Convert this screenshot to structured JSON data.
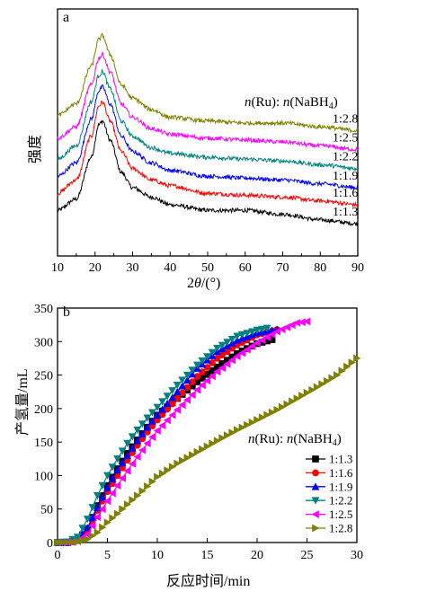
{
  "chart_data": [
    {
      "panel": "a",
      "type": "line",
      "xlabel": "2θ/(°)",
      "ylabel": "强度",
      "xlim": [
        10,
        90
      ],
      "xticks": [
        10,
        20,
        30,
        40,
        50,
        60,
        70,
        80,
        90
      ],
      "legend_title": "n(Ru): n(NaBH₄)",
      "series": [
        {
          "name": "1:1.3",
          "color": "#000000",
          "values": [
            [
              10,
              0.24
            ],
            [
              15,
              0.3
            ],
            [
              19,
              0.52
            ],
            [
              21,
              0.69
            ],
            [
              22,
              0.71
            ],
            [
              24,
              0.61
            ],
            [
              27,
              0.44
            ],
            [
              30,
              0.36
            ],
            [
              35,
              0.31
            ],
            [
              40,
              0.27
            ],
            [
              50,
              0.24
            ],
            [
              60,
              0.24
            ],
            [
              70,
              0.22
            ],
            [
              80,
              0.19
            ],
            [
              90,
              0.17
            ]
          ]
        },
        {
          "name": "1:1.6",
          "color": "#ff0000",
          "values": [
            [
              10,
              0.33
            ],
            [
              15,
              0.4
            ],
            [
              19,
              0.63
            ],
            [
              21,
              0.79
            ],
            [
              22,
              0.81
            ],
            [
              24,
              0.71
            ],
            [
              27,
              0.55
            ],
            [
              30,
              0.46
            ],
            [
              35,
              0.4
            ],
            [
              40,
              0.37
            ],
            [
              50,
              0.33
            ],
            [
              60,
              0.32
            ],
            [
              70,
              0.31
            ],
            [
              80,
              0.29
            ],
            [
              90,
              0.27
            ]
          ]
        },
        {
          "name": "1:1.9",
          "color": "#0000ff",
          "values": [
            [
              10,
              0.42
            ],
            [
              15,
              0.49
            ],
            [
              19,
              0.72
            ],
            [
              21,
              0.87
            ],
            [
              22,
              0.89
            ],
            [
              24,
              0.8
            ],
            [
              27,
              0.63
            ],
            [
              30,
              0.55
            ],
            [
              35,
              0.49
            ],
            [
              40,
              0.45
            ],
            [
              50,
              0.42
            ],
            [
              60,
              0.41
            ],
            [
              70,
              0.4
            ],
            [
              80,
              0.38
            ],
            [
              90,
              0.36
            ]
          ]
        },
        {
          "name": "1:2.2",
          "color": "#008080",
          "values": [
            [
              10,
              0.51
            ],
            [
              15,
              0.58
            ],
            [
              19,
              0.81
            ],
            [
              21,
              0.95
            ],
            [
              22,
              0.97
            ],
            [
              24,
              0.88
            ],
            [
              27,
              0.71
            ],
            [
              30,
              0.63
            ],
            [
              35,
              0.57
            ],
            [
              40,
              0.54
            ],
            [
              50,
              0.52
            ],
            [
              60,
              0.51
            ],
            [
              70,
              0.5
            ],
            [
              80,
              0.48
            ],
            [
              90,
              0.46
            ]
          ]
        },
        {
          "name": "1:2.5",
          "color": "#ff00ff",
          "values": [
            [
              10,
              0.62
            ],
            [
              15,
              0.68
            ],
            [
              19,
              0.9
            ],
            [
              21,
              1.04
            ],
            [
              22,
              1.06
            ],
            [
              24,
              0.97
            ],
            [
              27,
              0.8
            ],
            [
              30,
              0.73
            ],
            [
              35,
              0.67
            ],
            [
              40,
              0.64
            ],
            [
              50,
              0.62
            ],
            [
              60,
              0.61
            ],
            [
              70,
              0.6
            ],
            [
              80,
              0.58
            ],
            [
              90,
              0.56
            ]
          ]
        },
        {
          "name": "1:2.8",
          "color": "#808000",
          "values": [
            [
              10,
              0.74
            ],
            [
              15,
              0.8
            ],
            [
              19,
              1.0
            ],
            [
              21,
              1.14
            ],
            [
              22,
              1.16
            ],
            [
              24,
              1.06
            ],
            [
              27,
              0.9
            ],
            [
              30,
              0.83
            ],
            [
              35,
              0.77
            ],
            [
              40,
              0.73
            ],
            [
              50,
              0.71
            ],
            [
              60,
              0.7
            ],
            [
              70,
              0.7
            ],
            [
              80,
              0.68
            ],
            [
              90,
              0.66
            ]
          ]
        }
      ]
    },
    {
      "panel": "b",
      "type": "line",
      "xlabel": "反应时间/min",
      "ylabel": "产氢量/mL",
      "xlim": [
        0,
        30
      ],
      "ylim": [
        0,
        350
      ],
      "xticks": [
        0,
        5,
        10,
        15,
        20,
        25,
        30
      ],
      "yticks": [
        0,
        50,
        100,
        150,
        200,
        250,
        300,
        350
      ],
      "legend_title": "n(Ru): n(NaBH₄)",
      "series": [
        {
          "name": "1:1.3",
          "color": "#000000",
          "marker": "square",
          "values": [
            [
              0,
              0
            ],
            [
              1,
              0
            ],
            [
              2,
              3
            ],
            [
              3,
              20
            ],
            [
              4,
              55
            ],
            [
              5,
              85
            ],
            [
              6,
              110
            ],
            [
              7,
              133
            ],
            [
              8,
              153
            ],
            [
              9,
              172
            ],
            [
              10,
              190
            ],
            [
              12,
              215
            ],
            [
              14,
              240
            ],
            [
              16,
              262
            ],
            [
              18,
              282
            ],
            [
              20,
              297
            ],
            [
              21.5,
              303
            ]
          ]
        },
        {
          "name": "1:1.6",
          "color": "#ff0000",
          "marker": "circle",
          "values": [
            [
              0,
              0
            ],
            [
              1,
              0
            ],
            [
              2,
              3
            ],
            [
              3,
              18
            ],
            [
              4,
              48
            ],
            [
              5,
              76
            ],
            [
              6,
              100
            ],
            [
              7,
              123
            ],
            [
              8,
              145
            ],
            [
              9,
              165
            ],
            [
              10,
              183
            ],
            [
              12,
              215
            ],
            [
              14,
              248
            ],
            [
              16,
              275
            ],
            [
              18,
              295
            ],
            [
              20,
              310
            ],
            [
              22,
              318
            ]
          ]
        },
        {
          "name": "1:1.9",
          "color": "#0000ff",
          "marker": "triangle-up",
          "values": [
            [
              0,
              0
            ],
            [
              1,
              0
            ],
            [
              2,
              4
            ],
            [
              3,
              22
            ],
            [
              4,
              52
            ],
            [
              5,
              82
            ],
            [
              6,
              108
            ],
            [
              7,
              130
            ],
            [
              8,
              152
            ],
            [
              9,
              172
            ],
            [
              10,
              190
            ],
            [
              12,
              225
            ],
            [
              14,
              260
            ],
            [
              16,
              285
            ],
            [
              18,
              302
            ],
            [
              20,
              313
            ],
            [
              22,
              318
            ]
          ]
        },
        {
          "name": "1:2.2",
          "color": "#008080",
          "marker": "triangle-down",
          "values": [
            [
              0,
              0
            ],
            [
              1,
              1
            ],
            [
              2,
              8
            ],
            [
              3,
              35
            ],
            [
              4,
              70
            ],
            [
              5,
              100
            ],
            [
              6,
              125
            ],
            [
              7,
              148
            ],
            [
              8,
              168
            ],
            [
              9,
              186
            ],
            [
              10,
              202
            ],
            [
              12,
              235
            ],
            [
              14,
              265
            ],
            [
              16,
              290
            ],
            [
              18,
              308
            ],
            [
              20,
              317
            ],
            [
              21,
              320
            ]
          ]
        },
        {
          "name": "1:2.5",
          "color": "#ff00ff",
          "marker": "triangle-left",
          "values": [
            [
              0,
              0
            ],
            [
              1,
              0
            ],
            [
              2,
              2
            ],
            [
              3,
              12
            ],
            [
              4,
              38
            ],
            [
              5,
              62
            ],
            [
              6,
              85
            ],
            [
              7,
              107
            ],
            [
              8,
              128
            ],
            [
              9,
              148
            ],
            [
              10,
              167
            ],
            [
              12,
              198
            ],
            [
              14,
              228
            ],
            [
              16,
              255
            ],
            [
              18,
              278
            ],
            [
              20,
              298
            ],
            [
              22,
              315
            ],
            [
              24,
              328
            ],
            [
              25,
              330
            ]
          ]
        },
        {
          "name": "1:2.8",
          "color": "#808000",
          "marker": "triangle-right",
          "values": [
            [
              0,
              0
            ],
            [
              1,
              0
            ],
            [
              2,
              1
            ],
            [
              3,
              5
            ],
            [
              4,
              15
            ],
            [
              5,
              30
            ],
            [
              6,
              43
            ],
            [
              7,
              57
            ],
            [
              8,
              70
            ],
            [
              9,
              84
            ],
            [
              10,
              98
            ],
            [
              12,
              118
            ],
            [
              14,
              135
            ],
            [
              16,
              152
            ],
            [
              18,
              168
            ],
            [
              20,
              183
            ],
            [
              22,
              198
            ],
            [
              24,
              215
            ],
            [
              26,
              232
            ],
            [
              28,
              250
            ],
            [
              30,
              275
            ]
          ]
        }
      ]
    }
  ],
  "panels": {
    "a": {
      "label": "a",
      "legend_title_n1": "n",
      "legend_title_ru": "(Ru): ",
      "legend_title_n2": "n",
      "legend_title_nabh": "(NaBH",
      "legend_title_sub": "4",
      "legend_title_close": ")"
    },
    "b": {
      "label": "b",
      "legend_title_n1": "n",
      "legend_title_ru": "(Ru): ",
      "legend_title_n2": "n",
      "legend_title_nabh": "(NaBH",
      "legend_title_sub": "4",
      "legend_title_close": ")"
    }
  }
}
